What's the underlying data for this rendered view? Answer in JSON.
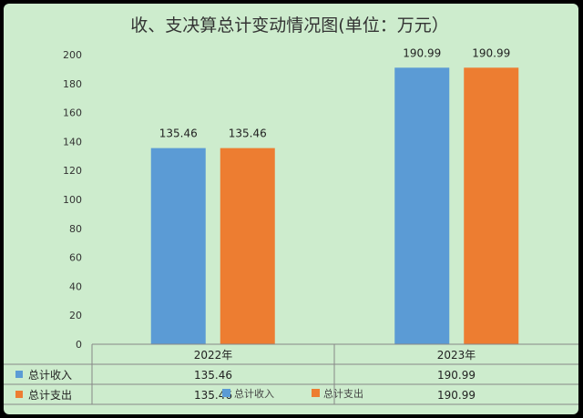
{
  "chart_data": {
    "type": "bar",
    "title": "收、支决算总计变动情况图(单位：万元）",
    "categories": [
      "2022年",
      "2023年"
    ],
    "series": [
      {
        "name": "总计收入",
        "values": [
          135.46,
          190.99
        ],
        "labels": [
          "135.46",
          "190.99"
        ],
        "color": "#5b9bd5"
      },
      {
        "name": "总计支出",
        "values": [
          135.46,
          190.99
        ],
        "labels": [
          "135.46",
          "190.99"
        ],
        "color": "#ed7d31"
      }
    ],
    "ylim": [
      0,
      200
    ],
    "yticks": [
      "0",
      "20",
      "40",
      "60",
      "80",
      "100",
      "120",
      "140",
      "160",
      "180",
      "200"
    ],
    "grid": false,
    "legend": "bottom",
    "data_table": true
  }
}
